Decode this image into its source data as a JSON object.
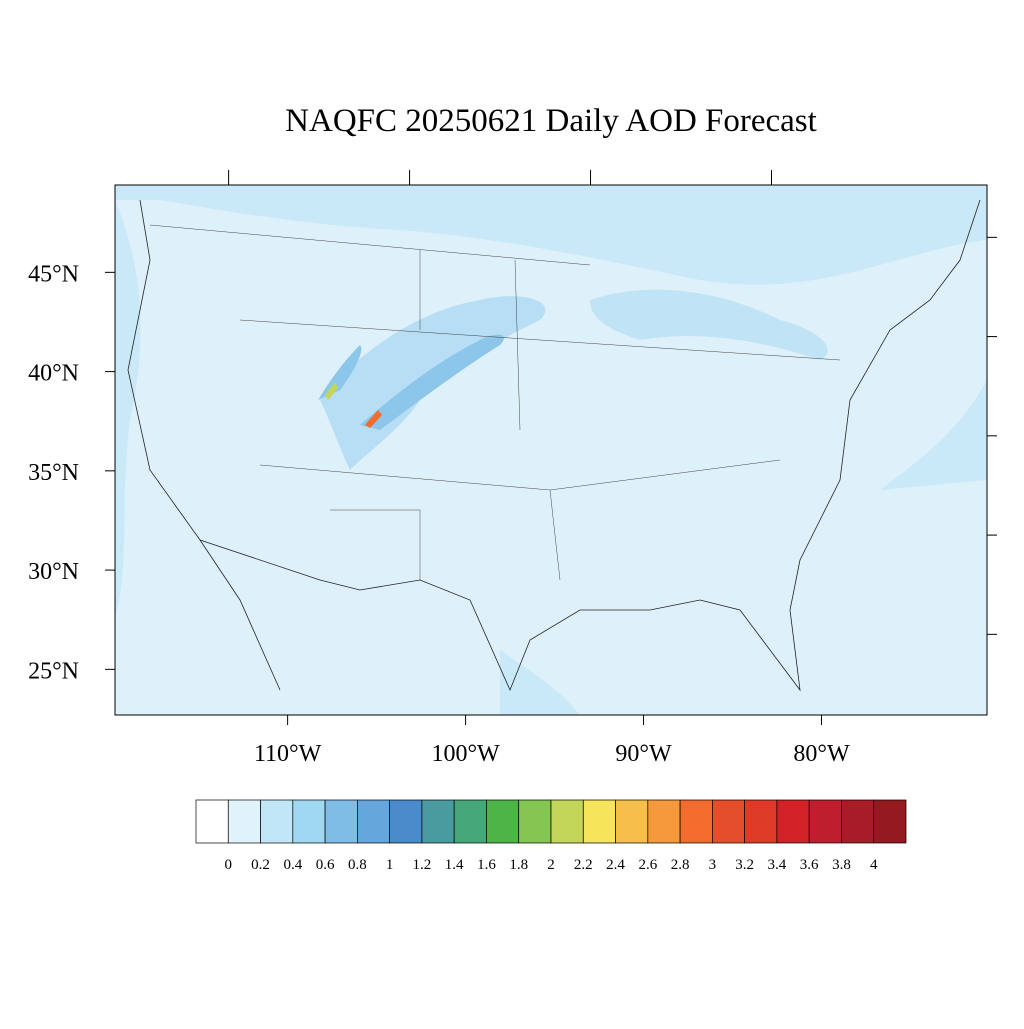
{
  "title": "NAQFC 20250621 Daily AOD Forecast",
  "map": {
    "xlim": [
      -119.7,
      -70.7
    ],
    "ylim": [
      22.7,
      49.4
    ],
    "lat_ticks": [
      {
        "value": 45,
        "label": "45°N"
      },
      {
        "value": 40,
        "label": "40°N"
      },
      {
        "value": 35,
        "label": "35°N"
      },
      {
        "value": 30,
        "label": "30°N"
      },
      {
        "value": 25,
        "label": "25°N"
      }
    ],
    "lon_ticks": [
      {
        "value": -110,
        "label": "110°W"
      },
      {
        "value": -100,
        "label": "100°W"
      },
      {
        "value": -90,
        "label": "90°W"
      },
      {
        "value": -80,
        "label": "80°W"
      }
    ]
  },
  "colorbar": {
    "levels": [
      0,
      0.2,
      0.4,
      0.6,
      0.8,
      1,
      1.2,
      1.4,
      1.6,
      1.8,
      2,
      2.2,
      2.4,
      2.6,
      2.8,
      3,
      3.2,
      3.4,
      3.6,
      3.8,
      4
    ],
    "colors": [
      "#ffffff",
      "#e0f3fb",
      "#c0e6f7",
      "#a0d8f2",
      "#80bde6",
      "#65a7dc",
      "#4a8ccb",
      "#4a9b9f",
      "#46a87a",
      "#4db548",
      "#85c552",
      "#c4d65a",
      "#f6e45a",
      "#f6bf4a",
      "#f6993d",
      "#f26c2e",
      "#e54e2a",
      "#dd3a28",
      "#d32128",
      "#be1e2d",
      "#a81c27",
      "#941a1f"
    ]
  }
}
